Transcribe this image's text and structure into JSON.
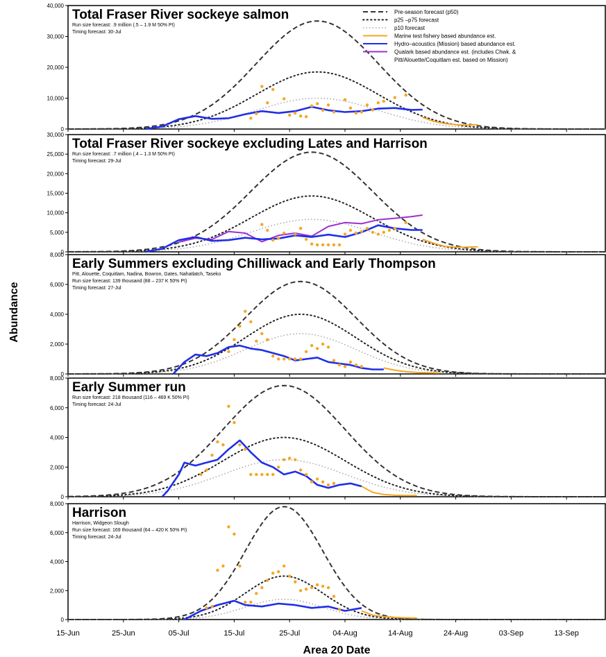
{
  "figure": {
    "xlabel": "Area 20 Date",
    "ylabel": "Abundance",
    "x_ticks": [
      "15-Jun",
      "25-Jun",
      "05-Jul",
      "15-Jul",
      "25-Jul",
      "04-Aug",
      "14-Aug",
      "24-Aug",
      "03-Sep",
      "13-Sep"
    ],
    "x_tick_days": [
      0,
      10,
      20,
      30,
      40,
      50,
      60,
      70,
      80,
      90
    ],
    "xlim_days": [
      0,
      97
    ],
    "x_units": "days after 15-Jun",
    "colors": {
      "p50": "#333333",
      "p25_p75": "#222222",
      "p10": "#aaaaaa",
      "marine": "#f5a623",
      "hydro": "#1f2ee8",
      "qualark": "#9b30d0"
    }
  },
  "legend": {
    "placement": "top-right of first panel",
    "entries": [
      {
        "key": "p50",
        "label": "Pre-season forecast (p50)",
        "style": "dashed"
      },
      {
        "key": "p25_p75",
        "label": "p25 –p75 forecast",
        "style": "dotted"
      },
      {
        "key": "p10",
        "label": "p10 forecast",
        "style": "dotted-grey"
      },
      {
        "key": "marine",
        "label": "Marine test fishery based abundance est.",
        "style": "line"
      },
      {
        "key": "hydro",
        "label": "Hydro–acoustics (Mission) based abundance est.",
        "style": "line"
      },
      {
        "key": "qualark",
        "label": "Qualark based abundance est. (includes Chwk. &",
        "label2": "Pitt/Alouette/Coquitlam est. based on Mission)",
        "style": "line"
      }
    ]
  },
  "chart_data": [
    {
      "type": "line",
      "title": "Total Fraser River sockeye salmon",
      "subtitles": [
        "Run size forecast: .9 million (.5 – 1.9 M 50% PI)",
        "Timing forecast: 30-Jul"
      ],
      "ylim": [
        0,
        40000
      ],
      "yticks": [
        0,
        10000,
        20000,
        30000,
        40000
      ],
      "ytick_labels": [
        "0",
        "10,000",
        "20,000",
        "30,000",
        "40,000"
      ],
      "forecast": {
        "peak_day": 45,
        "sigma": 11,
        "p50": 35000,
        "p75": 18500,
        "p10": 10000
      },
      "hydro": [
        [
          14,
          0
        ],
        [
          17,
          800
        ],
        [
          20,
          3200
        ],
        [
          23,
          4200
        ],
        [
          26,
          3300
        ],
        [
          29,
          3500
        ],
        [
          32,
          4800
        ],
        [
          35,
          5800
        ],
        [
          38,
          5200
        ],
        [
          41,
          5800
        ],
        [
          44,
          7200
        ],
        [
          47,
          6100
        ],
        [
          50,
          5500
        ],
        [
          53,
          5800
        ],
        [
          56,
          6600
        ],
        [
          59,
          6800
        ],
        [
          62,
          6200
        ],
        [
          64,
          6300
        ]
      ],
      "marine_line": [
        [
          64,
          3800
        ],
        [
          66,
          2500
        ],
        [
          68,
          1800
        ],
        [
          70,
          1400
        ],
        [
          72,
          1300
        ],
        [
          74,
          1400
        ]
      ],
      "marine_points": [
        [
          33,
          3500
        ],
        [
          34,
          5000
        ],
        [
          35,
          13800
        ],
        [
          36,
          8500
        ],
        [
          37,
          12800
        ],
        [
          39,
          9800
        ],
        [
          40,
          4500
        ],
        [
          41,
          5200
        ],
        [
          42,
          4200
        ],
        [
          43,
          4000
        ],
        [
          44,
          7500
        ],
        [
          45,
          8200
        ],
        [
          46,
          6100
        ],
        [
          47,
          7800
        ],
        [
          48,
          5500
        ],
        [
          50,
          9500
        ],
        [
          51,
          6800
        ],
        [
          52,
          5200
        ],
        [
          53,
          5500
        ],
        [
          54,
          7800
        ],
        [
          55,
          6200
        ],
        [
          56,
          8500
        ],
        [
          57,
          9000
        ],
        [
          59,
          10200
        ],
        [
          61,
          11000
        ]
      ]
    },
    {
      "type": "line",
      "title": "Total Fraser River sockeye excluding Lates and Harrison",
      "subtitles": [
        "Run size forecast: .7 million (.4 – 1.3 M 50% PI)",
        "Timing forecast: 29-Jul"
      ],
      "ylim": [
        0,
        30000
      ],
      "yticks": [
        0,
        5000,
        10000,
        15000,
        20000,
        25000,
        30000
      ],
      "ytick_labels": [
        "0",
        "5,000",
        "10,000",
        "15,000",
        "20,000",
        "25,000",
        "30,000"
      ],
      "forecast": {
        "peak_day": 44,
        "sigma": 11,
        "p50": 25500,
        "p75": 14300,
        "p10": 8300
      },
      "hydro": [
        [
          14,
          0
        ],
        [
          17,
          800
        ],
        [
          20,
          3000
        ],
        [
          23,
          3800
        ],
        [
          26,
          2800
        ],
        [
          29,
          3000
        ],
        [
          32,
          3600
        ],
        [
          35,
          3200
        ],
        [
          38,
          3400
        ],
        [
          41,
          4200
        ],
        [
          44,
          3800
        ],
        [
          47,
          4400
        ],
        [
          50,
          3800
        ],
        [
          53,
          5000
        ],
        [
          56,
          6800
        ],
        [
          59,
          6000
        ],
        [
          62,
          5600
        ],
        [
          64,
          5600
        ]
      ],
      "qualark": [
        [
          20,
          2500
        ],
        [
          23,
          3500
        ],
        [
          26,
          3200
        ],
        [
          29,
          5200
        ],
        [
          32,
          4800
        ],
        [
          35,
          2600
        ],
        [
          38,
          4200
        ],
        [
          41,
          4800
        ],
        [
          44,
          4000
        ],
        [
          47,
          6500
        ],
        [
          50,
          7500
        ],
        [
          53,
          7200
        ],
        [
          56,
          8200
        ],
        [
          59,
          8600
        ],
        [
          62,
          9000
        ],
        [
          64,
          9400
        ]
      ],
      "marine_line": [
        [
          64,
          3200
        ],
        [
          66,
          2200
        ],
        [
          68,
          1400
        ],
        [
          70,
          1200
        ],
        [
          72,
          1200
        ],
        [
          74,
          1300
        ]
      ],
      "marine_points": [
        [
          35,
          7000
        ],
        [
          36,
          5500
        ],
        [
          37,
          3000
        ],
        [
          38,
          3500
        ],
        [
          39,
          4800
        ],
        [
          41,
          4500
        ],
        [
          42,
          6000
        ],
        [
          43,
          3200
        ],
        [
          44,
          2000
        ],
        [
          45,
          1800
        ],
        [
          46,
          1800
        ],
        [
          47,
          1800
        ],
        [
          48,
          1800
        ],
        [
          49,
          1800
        ],
        [
          50,
          4500
        ],
        [
          51,
          5500
        ],
        [
          52,
          4800
        ],
        [
          53,
          5200
        ],
        [
          54,
          6000
        ],
        [
          55,
          5000
        ],
        [
          56,
          4500
        ],
        [
          57,
          5000
        ],
        [
          58,
          5500
        ],
        [
          59,
          6000
        ],
        [
          61,
          7500
        ]
      ]
    },
    {
      "type": "line",
      "title": "Early Summers excluding Chilliwack and Early Thompson",
      "subtitles": [
        "Pitt, Alouette, Coquitlam, Nadina, Bowron, Gates, Nahatlatch, Taseko",
        "Run size forecast: 139 thousand (88 – 237 K 50% PI)",
        "Timing forecast: 27-Jul"
      ],
      "ylim": [
        0,
        8000
      ],
      "yticks": [
        0,
        2000,
        4000,
        6000,
        8000
      ],
      "ytick_labels": [
        "0",
        "2,000",
        "4,000",
        "6,000",
        "8,000"
      ],
      "forecast": {
        "peak_day": 42,
        "sigma": 10,
        "p50": 6200,
        "p75": 4000,
        "p10": 2700
      },
      "hydro": [
        [
          19,
          0
        ],
        [
          21,
          800
        ],
        [
          23,
          1300
        ],
        [
          25,
          1200
        ],
        [
          27,
          1400
        ],
        [
          29,
          1800
        ],
        [
          31,
          1900
        ],
        [
          33,
          1700
        ],
        [
          35,
          1600
        ],
        [
          37,
          1400
        ],
        [
          39,
          1200
        ],
        [
          41,
          900
        ],
        [
          43,
          1000
        ],
        [
          45,
          1100
        ],
        [
          47,
          800
        ],
        [
          49,
          700
        ],
        [
          51,
          600
        ],
        [
          53,
          400
        ],
        [
          55,
          300
        ],
        [
          57,
          300
        ]
      ],
      "marine_line": [
        [
          57,
          400
        ],
        [
          59,
          250
        ],
        [
          61,
          150
        ],
        [
          63,
          100
        ],
        [
          65,
          80
        ],
        [
          67,
          60
        ]
      ],
      "marine_points": [
        [
          29,
          1500
        ],
        [
          30,
          2300
        ],
        [
          31,
          3200
        ],
        [
          32,
          4200
        ],
        [
          33,
          3500
        ],
        [
          34,
          2200
        ],
        [
          35,
          2700
        ],
        [
          36,
          2300
        ],
        [
          37,
          1200
        ],
        [
          38,
          1000
        ],
        [
          39,
          1000
        ],
        [
          40,
          1000
        ],
        [
          41,
          1000
        ],
        [
          42,
          1000
        ],
        [
          43,
          1500
        ],
        [
          44,
          1900
        ],
        [
          45,
          1700
        ],
        [
          46,
          2000
        ],
        [
          47,
          1800
        ],
        [
          48,
          900
        ],
        [
          49,
          600
        ],
        [
          50,
          500
        ],
        [
          51,
          800
        ],
        [
          52,
          600
        ],
        [
          53,
          500
        ]
      ]
    },
    {
      "type": "line",
      "title": "Early Summer run",
      "subtitles": [
        "Run size forecast: 218 thousand (116 – 469 K 50% PI)",
        "Timing forecast: 24-Jul"
      ],
      "ylim": [
        0,
        8000
      ],
      "yticks": [
        0,
        2000,
        4000,
        6000,
        8000
      ],
      "ytick_labels": [
        "0",
        "2,000",
        "4,000",
        "6,000",
        "8,000"
      ],
      "forecast": {
        "peak_day": 39,
        "sigma": 11,
        "p50": 7500,
        "p75": 4000,
        "p10": 2500
      },
      "hydro": [
        [
          17,
          0
        ],
        [
          18,
          400
        ],
        [
          20,
          1500
        ],
        [
          21,
          2300
        ],
        [
          23,
          2100
        ],
        [
          25,
          2300
        ],
        [
          27,
          2500
        ],
        [
          29,
          3200
        ],
        [
          31,
          3800
        ],
        [
          33,
          3000
        ],
        [
          35,
          2300
        ],
        [
          37,
          2000
        ],
        [
          39,
          1500
        ],
        [
          41,
          1700
        ],
        [
          43,
          1400
        ],
        [
          45,
          800
        ],
        [
          47,
          600
        ],
        [
          49,
          800
        ],
        [
          51,
          900
        ],
        [
          53,
          700
        ]
      ],
      "marine_line": [
        [
          53,
          700
        ],
        [
          55,
          300
        ],
        [
          57,
          150
        ],
        [
          59,
          100
        ],
        [
          61,
          80
        ],
        [
          63,
          80
        ]
      ],
      "marine_points": [
        [
          24,
          1500
        ],
        [
          25,
          1800
        ],
        [
          26,
          2800
        ],
        [
          27,
          3700
        ],
        [
          28,
          3500
        ],
        [
          29,
          6100
        ],
        [
          30,
          5000
        ],
        [
          31,
          3500
        ],
        [
          32,
          3200
        ],
        [
          33,
          1500
        ],
        [
          34,
          1500
        ],
        [
          35,
          1500
        ],
        [
          36,
          1500
        ],
        [
          37,
          1500
        ],
        [
          38,
          2000
        ],
        [
          39,
          2500
        ],
        [
          40,
          2600
        ],
        [
          41,
          2500
        ],
        [
          42,
          1800
        ],
        [
          43,
          1500
        ],
        [
          44,
          1000
        ],
        [
          45,
          1200
        ],
        [
          46,
          1000
        ],
        [
          47,
          800
        ],
        [
          48,
          900
        ]
      ]
    },
    {
      "type": "line",
      "title": "Harrison",
      "subtitles": [
        "Harrison, Widgeon Slough",
        "Run size forecast: 169 thousand (64 – 420 K 50% PI)",
        "Timing forecast: 24-Jul"
      ],
      "ylim": [
        0,
        8000
      ],
      "yticks": [
        0,
        2000,
        4000,
        6000,
        8000
      ],
      "ytick_labels": [
        "0",
        "2,000",
        "4,000",
        "6,000",
        "8,000"
      ],
      "forecast": {
        "peak_day": 39,
        "sigma": 7,
        "p50": 7800,
        "p75": 3000,
        "p10": 1400
      },
      "hydro": [
        [
          21,
          0
        ],
        [
          24,
          600
        ],
        [
          27,
          1000
        ],
        [
          30,
          1300
        ],
        [
          32,
          1000
        ],
        [
          35,
          900
        ],
        [
          38,
          1100
        ],
        [
          41,
          1000
        ],
        [
          44,
          800
        ],
        [
          47,
          900
        ],
        [
          50,
          600
        ],
        [
          53,
          800
        ]
      ],
      "marine_line": [
        [
          53,
          600
        ],
        [
          55,
          300
        ],
        [
          57,
          200
        ],
        [
          59,
          150
        ],
        [
          61,
          120
        ],
        [
          63,
          100
        ]
      ],
      "marine_points": [
        [
          25,
          800
        ],
        [
          26,
          900
        ],
        [
          27,
          3400
        ],
        [
          28,
          3700
        ],
        [
          29,
          6400
        ],
        [
          30,
          5900
        ],
        [
          31,
          3700
        ],
        [
          32,
          1200
        ],
        [
          33,
          1200
        ],
        [
          34,
          1800
        ],
        [
          35,
          2200
        ],
        [
          36,
          2700
        ],
        [
          37,
          3200
        ],
        [
          38,
          3300
        ],
        [
          39,
          3700
        ],
        [
          40,
          3000
        ],
        [
          41,
          2600
        ],
        [
          42,
          2000
        ],
        [
          43,
          2100
        ],
        [
          44,
          2200
        ],
        [
          45,
          2400
        ],
        [
          46,
          2300
        ],
        [
          47,
          2200
        ],
        [
          48,
          1600
        ],
        [
          49,
          700
        ]
      ]
    }
  ]
}
